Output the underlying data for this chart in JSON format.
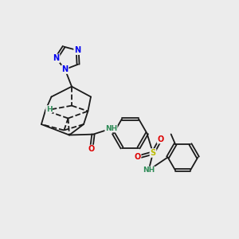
{
  "bg_color": "#ececec",
  "bond_color": "#1a1a1a",
  "bond_width": 1.3,
  "fig_size": [
    3.0,
    3.0
  ],
  "dpi": 100,
  "atom_colors": {
    "N": "#0000ee",
    "O": "#dd0000",
    "S": "#bbbb00",
    "H_label": "#2e8b57",
    "C": "#1a1a1a"
  },
  "font_size_atom": 7.0,
  "font_size_small": 6.0,
  "xlim": [
    0,
    10
  ],
  "ylim": [
    0,
    10
  ]
}
